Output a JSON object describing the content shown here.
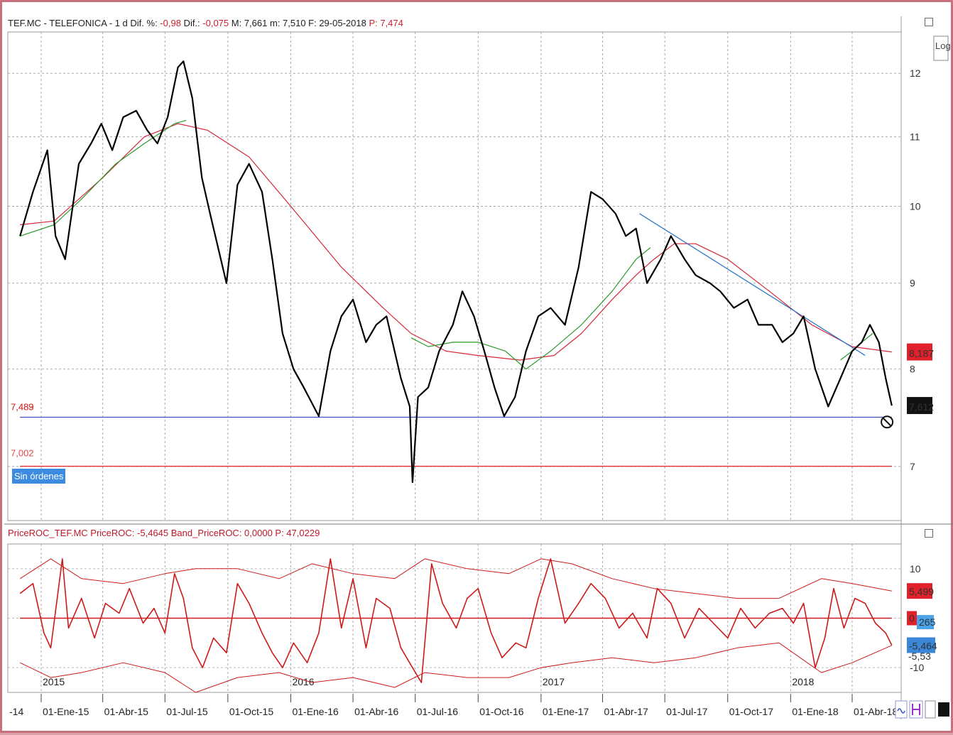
{
  "header": {
    "main_prefix": "TEF.MC - TELEFONICA - 1 d  Dif. %: ",
    "main_pct": "-0,98",
    "main_dif_label": "  Dif.: ",
    "main_dif": "-0,075",
    "main_rest": "  M: 7,661  m: 7,510  F: 29-05-2018  ",
    "main_p": "P: 7,474",
    "osc": "PriceROC_TEF.MC  PriceROC: -5,4645  Band_PriceROC: 0,0000  P: 47,0229"
  },
  "labels": {
    "support_value": "7,489",
    "support_value_ghost": "7,483",
    "order_value": "7,002",
    "orders": "Sin órdenes",
    "log_button": "Log",
    "ma_badge": "8,187",
    "price_badge": "7,612",
    "roc_upper_badge": "5,499",
    "roc_zero_badge": "0",
    "roc_cyan_badge": "265",
    "roc_value_badge": "-5,464",
    "roc_lower_ghost": "-5,53"
  },
  "colors": {
    "price": "#000000",
    "ma_long": "#d6283a",
    "ma_short": "#2a9a2a",
    "trend": "#2b78c8",
    "support": "#3a50c0",
    "order_line": "#e03030",
    "osc": "#cc1a1a"
  },
  "chart_data": [
    {
      "type": "line",
      "title": "TEF.MC - TELEFONICA - 1 d",
      "x_ticks": [
        "01-Ene-15",
        "01-Abr-15",
        "01-Jul-15",
        "01-Oct-15",
        "01-Ene-16",
        "01-Abr-16",
        "01-Jul-16",
        "01-Oct-16",
        "01-Ene-17",
        "01-Abr-17",
        "01-Jul-17",
        "01-Oct-17",
        "01-Ene-18",
        "01-Abr-18"
      ],
      "x_first_partial": "-14",
      "year_labels": [
        "2015",
        "2016",
        "2017",
        "2018"
      ],
      "y_scale": "log",
      "y_ticks": [
        12,
        11,
        10,
        9,
        8,
        7
      ],
      "ylim": [
        6.5,
        12.7
      ],
      "series": [
        {
          "name": "price",
          "dates": [
            "2014-12-01",
            "2014-12-20",
            "2015-01-10",
            "2015-01-22",
            "2015-02-05",
            "2015-02-25",
            "2015-03-15",
            "2015-03-30",
            "2015-04-15",
            "2015-05-01",
            "2015-05-20",
            "2015-06-05",
            "2015-06-20",
            "2015-07-05",
            "2015-07-20",
            "2015-07-28",
            "2015-08-10",
            "2015-08-24",
            "2015-09-05",
            "2015-09-29",
            "2015-10-15",
            "2015-11-01",
            "2015-11-20",
            "2015-12-05",
            "2015-12-20",
            "2016-01-05",
            "2016-01-20",
            "2016-02-11",
            "2016-02-28",
            "2016-03-15",
            "2016-04-01",
            "2016-04-20",
            "2016-05-05",
            "2016-05-20",
            "2016-06-10",
            "2016-06-23",
            "2016-06-27",
            "2016-07-05",
            "2016-07-20",
            "2016-08-05",
            "2016-08-25",
            "2016-09-08",
            "2016-09-25",
            "2016-10-10",
            "2016-10-25",
            "2016-11-08",
            "2016-11-24",
            "2016-12-10",
            "2016-12-28",
            "2017-01-15",
            "2017-02-05",
            "2017-02-25",
            "2017-03-15",
            "2017-04-01",
            "2017-04-20",
            "2017-05-05",
            "2017-05-20",
            "2017-06-05",
            "2017-06-25",
            "2017-07-10",
            "2017-07-30",
            "2017-08-15",
            "2017-09-05",
            "2017-09-20",
            "2017-10-10",
            "2017-10-30",
            "2017-11-15",
            "2017-12-05",
            "2017-12-20",
            "2018-01-05",
            "2018-01-20",
            "2018-02-06",
            "2018-02-25",
            "2018-03-15",
            "2018-04-01",
            "2018-04-15",
            "2018-04-27",
            "2018-05-10",
            "2018-05-20",
            "2018-05-29"
          ],
          "values": [
            9.6,
            10.2,
            10.8,
            9.6,
            9.3,
            10.6,
            10.9,
            11.2,
            10.8,
            11.3,
            11.4,
            11.1,
            10.9,
            11.3,
            12.1,
            12.2,
            11.6,
            10.4,
            9.9,
            9.0,
            10.3,
            10.6,
            10.2,
            9.3,
            8.4,
            8.0,
            7.8,
            7.5,
            8.2,
            8.6,
            8.8,
            8.3,
            8.5,
            8.6,
            7.9,
            7.6,
            6.85,
            7.7,
            7.8,
            8.2,
            8.5,
            8.9,
            8.6,
            8.2,
            7.8,
            7.5,
            7.7,
            8.2,
            8.6,
            8.7,
            8.5,
            9.2,
            10.2,
            10.1,
            9.9,
            9.6,
            9.7,
            9.0,
            9.3,
            9.6,
            9.3,
            9.1,
            9.0,
            8.9,
            8.7,
            8.8,
            8.5,
            8.5,
            8.3,
            8.4,
            8.6,
            8.0,
            7.6,
            7.9,
            8.2,
            8.3,
            8.5,
            8.3,
            7.9,
            7.61
          ]
        },
        {
          "name": "ma_long",
          "dates": [
            "2014-12-01",
            "2015-01-20",
            "2015-04-01",
            "2015-06-01",
            "2015-07-20",
            "2015-09-01",
            "2015-11-01",
            "2016-01-01",
            "2016-03-15",
            "2016-05-15",
            "2016-06-25",
            "2016-08-15",
            "2016-10-01",
            "2016-12-01",
            "2017-01-20",
            "2017-03-01",
            "2017-04-15",
            "2017-05-20",
            "2017-06-15",
            "2017-07-15",
            "2017-08-15",
            "2017-10-01",
            "2017-12-01",
            "2018-02-01",
            "2018-04-01",
            "2018-05-29"
          ],
          "values": [
            9.75,
            9.8,
            10.4,
            11.0,
            11.2,
            11.1,
            10.7,
            10.0,
            9.2,
            8.7,
            8.4,
            8.2,
            8.15,
            8.1,
            8.15,
            8.4,
            8.8,
            9.1,
            9.3,
            9.5,
            9.5,
            9.3,
            8.9,
            8.5,
            8.25,
            8.19
          ]
        },
        {
          "name": "ma_short",
          "dates": [
            "2014-12-01",
            "2015-01-20",
            "2015-03-01",
            "2015-04-20",
            "2015-06-01",
            "2015-07-15",
            "2015-08-01"
          ],
          "values": [
            9.6,
            9.75,
            10.1,
            10.6,
            10.9,
            11.2,
            11.25
          ]
        },
        {
          "name": "ma_short_2",
          "dates": [
            "2016-06-25",
            "2016-07-20",
            "2016-08-25",
            "2016-10-01",
            "2016-11-10",
            "2016-12-10",
            "2017-01-15",
            "2017-03-01",
            "2017-04-15",
            "2017-05-20",
            "2017-06-10"
          ],
          "values": [
            8.35,
            8.25,
            8.3,
            8.3,
            8.2,
            8.0,
            8.2,
            8.5,
            8.9,
            9.3,
            9.45
          ]
        },
        {
          "name": "ma_short_3",
          "dates": [
            "2018-03-15",
            "2018-04-01",
            "2018-04-15",
            "2018-05-01"
          ],
          "values": [
            8.1,
            8.2,
            8.3,
            8.4
          ]
        },
        {
          "name": "trendline",
          "dates": [
            "2017-05-25",
            "2018-04-20"
          ],
          "values": [
            9.9,
            8.15
          ]
        }
      ],
      "hlines": [
        {
          "name": "support",
          "value": 7.489,
          "from": "2014-12-01",
          "to": "2018-05-29"
        },
        {
          "name": "order",
          "value": 7.002,
          "from": "2014-12-01",
          "to": "2018-05-29"
        }
      ]
    },
    {
      "type": "line",
      "title": "PriceROC_TEF.MC",
      "y_ticks": [
        10,
        0,
        -10
      ],
      "ylim": [
        -15,
        15
      ],
      "series": [
        {
          "name": "PriceROC",
          "dates": [
            "2014-12-01",
            "2014-12-20",
            "2015-01-05",
            "2015-01-15",
            "2015-02-01",
            "2015-02-10",
            "2015-03-01",
            "2015-03-20",
            "2015-04-05",
            "2015-04-25",
            "2015-05-10",
            "2015-05-30",
            "2015-06-15",
            "2015-07-01",
            "2015-07-15",
            "2015-07-28",
            "2015-08-10",
            "2015-08-25",
            "2015-09-10",
            "2015-09-29",
            "2015-10-15",
            "2015-11-01",
            "2015-11-20",
            "2015-12-05",
            "2015-12-20",
            "2016-01-05",
            "2016-01-25",
            "2016-02-11",
            "2016-02-28",
            "2016-03-15",
            "2016-04-01",
            "2016-04-20",
            "2016-05-05",
            "2016-05-25",
            "2016-06-10",
            "2016-06-27",
            "2016-07-10",
            "2016-07-25",
            "2016-08-10",
            "2016-08-30",
            "2016-09-15",
            "2016-10-01",
            "2016-10-20",
            "2016-11-05",
            "2016-11-25",
            "2016-12-10",
            "2016-12-28",
            "2017-01-15",
            "2017-02-05",
            "2017-02-25",
            "2017-03-15",
            "2017-04-05",
            "2017-04-25",
            "2017-05-15",
            "2017-06-05",
            "2017-06-20",
            "2017-07-10",
            "2017-07-30",
            "2017-08-20",
            "2017-09-10",
            "2017-10-01",
            "2017-10-20",
            "2017-11-10",
            "2017-12-01",
            "2017-12-20",
            "2018-01-05",
            "2018-01-20",
            "2018-02-06",
            "2018-02-20",
            "2018-03-05",
            "2018-03-20",
            "2018-04-05",
            "2018-04-20",
            "2018-05-05",
            "2018-05-20",
            "2018-05-29"
          ],
          "values": [
            5,
            7,
            -3,
            -6,
            12,
            -2,
            4,
            -4,
            3,
            1,
            6,
            -1,
            2,
            -3,
            9,
            4,
            -6,
            -10,
            -4,
            -7,
            7,
            3,
            -3,
            -7,
            -10,
            -5,
            -9,
            -3,
            12,
            -2,
            8,
            -6,
            4,
            2,
            -6,
            -10,
            -13,
            11,
            3,
            -2,
            4,
            6,
            -3,
            -8,
            -5,
            -6,
            4,
            12,
            -1,
            3,
            7,
            4,
            -2,
            1,
            -4,
            6,
            3,
            -4,
            2,
            -1,
            -4,
            2,
            -2,
            1,
            2,
            -1,
            3,
            -10,
            -4,
            6,
            -2,
            4,
            3,
            -1,
            -3,
            -5.46
          ]
        },
        {
          "name": "upper_band",
          "dates": [
            "2014-12-01",
            "2015-01-15",
            "2015-03-01",
            "2015-05-01",
            "2015-07-01",
            "2015-08-15",
            "2015-10-15",
            "2015-12-15",
            "2016-02-01",
            "2016-04-01",
            "2016-06-01",
            "2016-07-15",
            "2016-09-15",
            "2016-11-15",
            "2017-01-01",
            "2017-02-15",
            "2017-04-15",
            "2017-06-15",
            "2017-08-15",
            "2017-10-15",
            "2017-12-15",
            "2018-02-15",
            "2018-04-01",
            "2018-05-29"
          ],
          "values": [
            8,
            12,
            8,
            7,
            9,
            10,
            10,
            8,
            11,
            9,
            8,
            12,
            10,
            9,
            12,
            11,
            8,
            6,
            5,
            4,
            4,
            8,
            7,
            5.5
          ]
        },
        {
          "name": "lower_band",
          "dates": [
            "2014-12-01",
            "2015-01-15",
            "2015-03-01",
            "2015-05-01",
            "2015-07-01",
            "2015-08-15",
            "2015-10-15",
            "2015-12-15",
            "2016-02-01",
            "2016-04-01",
            "2016-06-01",
            "2016-07-15",
            "2016-09-15",
            "2016-11-15",
            "2017-01-01",
            "2017-02-15",
            "2017-04-15",
            "2017-06-15",
            "2017-08-15",
            "2017-10-15",
            "2017-12-15",
            "2018-02-15",
            "2018-04-01",
            "2018-05-29"
          ],
          "values": [
            -9,
            -12,
            -11,
            -9,
            -11,
            -15,
            -12,
            -11,
            -13,
            -12,
            -14,
            -11,
            -12,
            -12,
            -10,
            -9,
            -8,
            -9,
            -8,
            -6,
            -5,
            -11,
            -9,
            -5.5
          ]
        },
        {
          "name": "Band_PriceROC",
          "dates": [
            "2014-12-01",
            "2018-05-29"
          ],
          "values": [
            0,
            0
          ]
        }
      ]
    }
  ]
}
